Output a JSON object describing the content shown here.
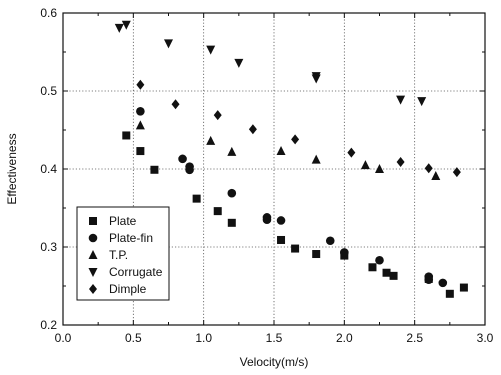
{
  "chart_data": {
    "type": "scatter",
    "title": "",
    "xlabel": "Velocity(m/s)",
    "ylabel": "Effectiveness",
    "xlim": [
      0.0,
      3.0
    ],
    "ylim": [
      0.2,
      0.6
    ],
    "x_ticks": [
      "0.0",
      "0.5",
      "1.0",
      "1.5",
      "2.0",
      "2.5",
      "3.0"
    ],
    "y_ticks": [
      "0.2",
      "0.3",
      "0.4",
      "0.5",
      "0.6"
    ],
    "grid": "dotted",
    "legend_position": "bottom-left",
    "series": [
      {
        "name": "Plate",
        "marker": "square",
        "points": [
          [
            0.45,
            0.443
          ],
          [
            0.55,
            0.423
          ],
          [
            0.65,
            0.399
          ],
          [
            0.95,
            0.362
          ],
          [
            1.1,
            0.346
          ],
          [
            1.2,
            0.331
          ],
          [
            1.55,
            0.309
          ],
          [
            1.65,
            0.298
          ],
          [
            1.8,
            0.291
          ],
          [
            2.0,
            0.289
          ],
          [
            2.2,
            0.274
          ],
          [
            2.3,
            0.267
          ],
          [
            2.35,
            0.263
          ],
          [
            2.6,
            0.259
          ],
          [
            2.75,
            0.24
          ],
          [
            2.85,
            0.248
          ]
        ]
      },
      {
        "name": "Plate-fin",
        "marker": "circle",
        "points": [
          [
            0.55,
            0.474
          ],
          [
            0.85,
            0.413
          ],
          [
            0.9,
            0.403
          ],
          [
            0.9,
            0.399
          ],
          [
            1.2,
            0.369
          ],
          [
            1.45,
            0.338
          ],
          [
            1.45,
            0.335
          ],
          [
            1.55,
            0.334
          ],
          [
            1.9,
            0.308
          ],
          [
            2.0,
            0.293
          ],
          [
            2.25,
            0.283
          ],
          [
            2.6,
            0.262
          ],
          [
            2.6,
            0.258
          ],
          [
            2.7,
            0.254
          ]
        ]
      },
      {
        "name": "T.P.",
        "marker": "triangle-up",
        "points": [
          [
            0.55,
            0.456
          ],
          [
            1.05,
            0.436
          ],
          [
            1.2,
            0.422
          ],
          [
            1.55,
            0.423
          ],
          [
            1.8,
            0.412
          ],
          [
            2.15,
            0.405
          ],
          [
            2.25,
            0.4
          ],
          [
            2.65,
            0.391
          ]
        ]
      },
      {
        "name": "Corrugate",
        "marker": "triangle-down",
        "points": [
          [
            0.4,
            0.581
          ],
          [
            0.45,
            0.585
          ],
          [
            0.75,
            0.561
          ],
          [
            1.05,
            0.553
          ],
          [
            1.25,
            0.536
          ],
          [
            1.8,
            0.519
          ],
          [
            1.8,
            0.516
          ],
          [
            2.4,
            0.489
          ],
          [
            2.55,
            0.487
          ]
        ]
      },
      {
        "name": "Dimple",
        "marker": "diamond",
        "points": [
          [
            0.55,
            0.508
          ],
          [
            0.8,
            0.483
          ],
          [
            1.1,
            0.469
          ],
          [
            1.35,
            0.451
          ],
          [
            1.65,
            0.438
          ],
          [
            2.05,
            0.421
          ],
          [
            2.4,
            0.409
          ],
          [
            2.6,
            0.401
          ],
          [
            2.8,
            0.396
          ]
        ]
      }
    ]
  }
}
